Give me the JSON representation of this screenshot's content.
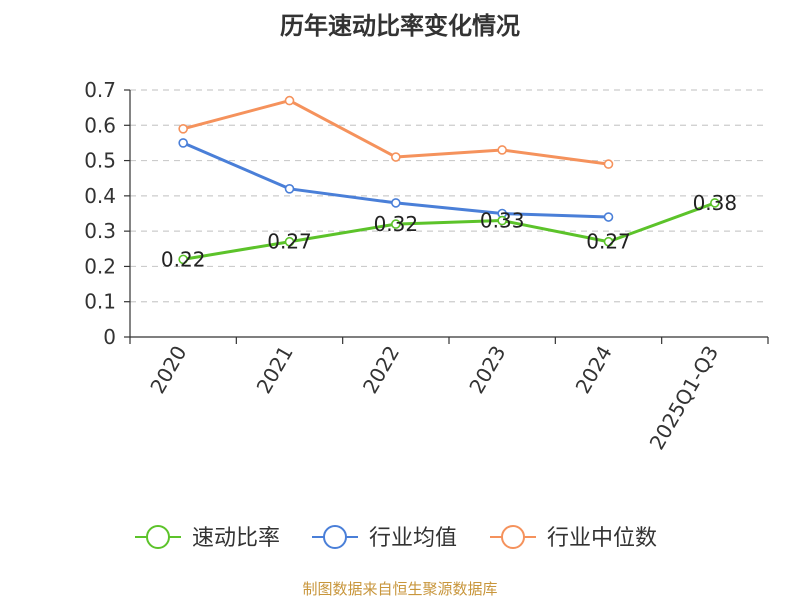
{
  "chart_data": {
    "type": "line",
    "title": "历年速动比率变化情况",
    "categories": [
      "2020",
      "2021",
      "2022",
      "2023",
      "2024",
      "2025Q1-Q3"
    ],
    "ylim": [
      0,
      0.7
    ],
    "yticks": [
      "0",
      "0.1",
      "0.2",
      "0.3",
      "0.4",
      "0.5",
      "0.6",
      "0.7"
    ],
    "grid": true,
    "legend_position": "bottom",
    "xlabel": "",
    "ylabel": "",
    "series": [
      {
        "name": "速动比率",
        "color": "#5cc32a",
        "values": [
          0.22,
          0.27,
          0.32,
          0.33,
          0.27,
          0.38
        ],
        "labels": [
          "0.22",
          "0.27",
          "0.32",
          "0.33",
          "0.27",
          "0.38"
        ]
      },
      {
        "name": "行业均值",
        "color": "#4a7fd8",
        "values": [
          0.55,
          0.42,
          0.38,
          0.35,
          0.34,
          null
        ]
      },
      {
        "name": "行业中位数",
        "color": "#f5925c",
        "values": [
          0.59,
          0.67,
          0.51,
          0.53,
          0.49,
          null
        ]
      }
    ]
  },
  "source": "制图数据来自恒生聚源数据库"
}
